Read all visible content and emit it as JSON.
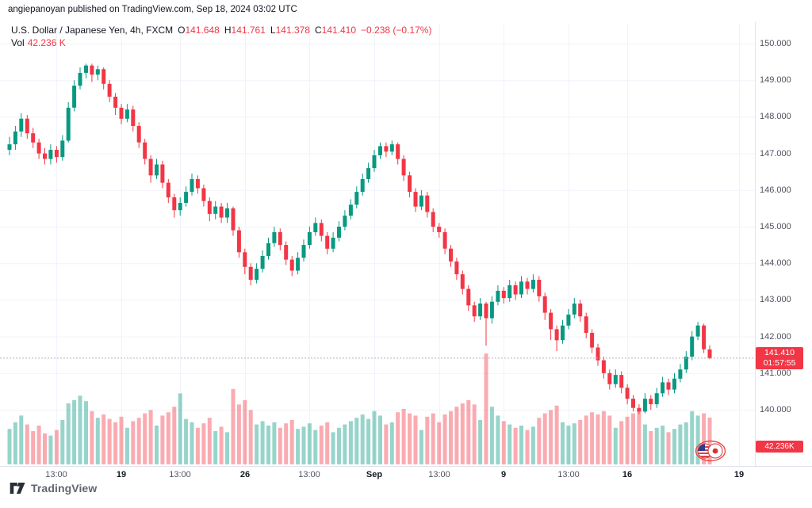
{
  "attribution": "angiepanoyan published on TradingView.com, Sep 18, 2024 03:02 UTC",
  "header": {
    "symbol": "U.S. Dollar / Japanese Yen, 4h, FXCM",
    "open": {
      "label": "O",
      "value": "141.648"
    },
    "high": {
      "label": "H",
      "value": "141.761"
    },
    "low": {
      "label": "L",
      "value": "141.378"
    },
    "close": {
      "label": "C",
      "value": "141.410"
    },
    "change": "−0.238 (−0.17%)",
    "vol_label": "Vol",
    "vol_value": "42.236 K"
  },
  "badges": {
    "price": "141.410",
    "countdown": "01:57:55",
    "volume": "42.236K"
  },
  "footer": {
    "logo_text": "TradingView"
  },
  "icons": {
    "flags_sticker": "us-japan-flags-icon",
    "logo": "tradingview-logo-icon"
  },
  "colors": {
    "up": "#089981",
    "down": "#f23645",
    "vol_up": "rgba(8,153,129,0.42)",
    "vol_down": "rgba(242,54,69,0.42)",
    "grid": "#f0f3fa",
    "axis_line": "#e0e3eb",
    "price_line": "#b2b5be",
    "badge": "#f23645",
    "tick_text": "#50535e"
  },
  "chart_data": {
    "type": "candlestick",
    "title": "U.S. Dollar / Japanese Yen, 4h, FXCM",
    "timeframe": "4h",
    "exchange": "FXCM",
    "last_price": 141.41,
    "last_volume_k": 42.236,
    "ylim": [
      139.5,
      150.3
    ],
    "grid": true,
    "y_ticks": [
      {
        "v": 150,
        "label": "150.000"
      },
      {
        "v": 149,
        "label": "149.000"
      },
      {
        "v": 148,
        "label": "148.000"
      },
      {
        "v": 147,
        "label": "147.000"
      },
      {
        "v": 146,
        "label": "146.000"
      },
      {
        "v": 145,
        "label": "145.000"
      },
      {
        "v": 144,
        "label": "144.000"
      },
      {
        "v": 143,
        "label": "143.000"
      },
      {
        "v": 142,
        "label": "142.000"
      },
      {
        "v": 141,
        "label": "141.000"
      },
      {
        "v": 140,
        "label": "140.000"
      }
    ],
    "x_ticks": [
      {
        "i": 8,
        "label": "13:00",
        "bold": false
      },
      {
        "i": 19,
        "label": "19",
        "bold": true
      },
      {
        "i": 29,
        "label": "13:00",
        "bold": false
      },
      {
        "i": 40,
        "label": "26",
        "bold": true
      },
      {
        "i": 51,
        "label": "13:00",
        "bold": false
      },
      {
        "i": 62,
        "label": "Sep",
        "bold": true
      },
      {
        "i": 73,
        "label": "13:00",
        "bold": false
      },
      {
        "i": 84,
        "label": "9",
        "bold": true
      },
      {
        "i": 95,
        "label": "13:00",
        "bold": false
      },
      {
        "i": 105,
        "label": "16",
        "bold": true
      },
      {
        "i": 124,
        "label": "19",
        "bold": true
      }
    ],
    "candles": [
      [
        147.1,
        147.45,
        146.95,
        147.25,
        32
      ],
      [
        147.25,
        147.75,
        147.1,
        147.6,
        38
      ],
      [
        147.6,
        148.1,
        147.45,
        147.95,
        44
      ],
      [
        147.95,
        148.05,
        147.4,
        147.55,
        36
      ],
      [
        147.55,
        147.7,
        147.15,
        147.3,
        30
      ],
      [
        147.3,
        147.4,
        146.85,
        147.0,
        35
      ],
      [
        147.0,
        147.15,
        146.7,
        146.85,
        28
      ],
      [
        146.85,
        147.25,
        146.7,
        147.1,
        26
      ],
      [
        147.1,
        147.2,
        146.75,
        146.9,
        31
      ],
      [
        146.9,
        147.5,
        146.8,
        147.35,
        40
      ],
      [
        147.35,
        148.4,
        147.3,
        148.25,
        55
      ],
      [
        148.25,
        149.0,
        148.15,
        148.85,
        58
      ],
      [
        148.85,
        149.35,
        148.75,
        149.2,
        62
      ],
      [
        149.2,
        149.45,
        149.05,
        149.4,
        57
      ],
      [
        149.4,
        149.45,
        148.95,
        149.15,
        48
      ],
      [
        149.15,
        149.4,
        149.0,
        149.3,
        42
      ],
      [
        149.3,
        149.35,
        148.75,
        148.9,
        45
      ],
      [
        148.9,
        149.0,
        148.4,
        148.55,
        41
      ],
      [
        148.55,
        148.65,
        148.05,
        148.25,
        38
      ],
      [
        148.25,
        148.35,
        147.8,
        147.95,
        43
      ],
      [
        147.95,
        148.35,
        147.85,
        148.2,
        33
      ],
      [
        148.2,
        148.3,
        147.6,
        147.75,
        39
      ],
      [
        147.75,
        147.85,
        147.15,
        147.3,
        42
      ],
      [
        147.3,
        147.4,
        146.7,
        146.85,
        46
      ],
      [
        146.85,
        146.95,
        146.2,
        146.4,
        49
      ],
      [
        146.4,
        146.85,
        146.3,
        146.7,
        35
      ],
      [
        146.7,
        146.8,
        146.05,
        146.2,
        44
      ],
      [
        146.2,
        146.3,
        145.65,
        145.8,
        47
      ],
      [
        145.8,
        145.9,
        145.25,
        145.45,
        52
      ],
      [
        145.45,
        145.8,
        145.3,
        145.65,
        64
      ],
      [
        145.65,
        146.1,
        145.55,
        145.95,
        41
      ],
      [
        145.95,
        146.45,
        145.85,
        146.3,
        38
      ],
      [
        146.3,
        146.4,
        145.9,
        146.05,
        33
      ],
      [
        146.05,
        146.15,
        145.55,
        145.7,
        37
      ],
      [
        145.7,
        145.8,
        145.15,
        145.35,
        42
      ],
      [
        145.35,
        145.7,
        145.2,
        145.55,
        30
      ],
      [
        145.55,
        145.65,
        145.1,
        145.25,
        34
      ],
      [
        145.25,
        145.65,
        145.1,
        145.5,
        29
      ],
      [
        145.5,
        145.55,
        144.75,
        144.9,
        68
      ],
      [
        144.9,
        145.0,
        144.15,
        144.3,
        54
      ],
      [
        144.3,
        144.4,
        143.7,
        143.9,
        58
      ],
      [
        143.9,
        144.0,
        143.4,
        143.55,
        49
      ],
      [
        143.55,
        144.0,
        143.45,
        143.85,
        36
      ],
      [
        143.85,
        144.35,
        143.75,
        144.2,
        39
      ],
      [
        144.2,
        144.7,
        144.1,
        144.55,
        35
      ],
      [
        144.55,
        145.0,
        144.45,
        144.85,
        38
      ],
      [
        144.85,
        144.95,
        144.35,
        144.5,
        33
      ],
      [
        144.5,
        144.6,
        143.95,
        144.1,
        37
      ],
      [
        144.1,
        144.2,
        143.65,
        143.8,
        40
      ],
      [
        143.8,
        144.3,
        143.7,
        144.15,
        32
      ],
      [
        144.15,
        144.65,
        144.05,
        144.5,
        34
      ],
      [
        144.5,
        145.0,
        144.4,
        144.85,
        37
      ],
      [
        144.85,
        145.25,
        144.75,
        145.1,
        31
      ],
      [
        145.1,
        145.2,
        144.6,
        144.75,
        35
      ],
      [
        144.75,
        144.85,
        144.25,
        144.4,
        38
      ],
      [
        144.4,
        144.85,
        144.3,
        144.7,
        29
      ],
      [
        144.7,
        145.15,
        144.6,
        145.0,
        33
      ],
      [
        145.0,
        145.45,
        144.9,
        145.3,
        36
      ],
      [
        145.3,
        145.75,
        145.2,
        145.6,
        39
      ],
      [
        145.6,
        146.1,
        145.5,
        145.95,
        42
      ],
      [
        145.95,
        146.45,
        145.85,
        146.3,
        45
      ],
      [
        146.3,
        146.75,
        146.2,
        146.6,
        41
      ],
      [
        146.6,
        147.1,
        146.5,
        146.95,
        48
      ],
      [
        146.95,
        147.3,
        146.85,
        147.2,
        44
      ],
      [
        147.2,
        147.3,
        146.9,
        147.05,
        36
      ],
      [
        147.05,
        147.35,
        146.95,
        147.25,
        38
      ],
      [
        147.25,
        147.3,
        146.7,
        146.85,
        47
      ],
      [
        146.85,
        146.95,
        146.25,
        146.4,
        50
      ],
      [
        146.4,
        146.5,
        145.8,
        145.95,
        46
      ],
      [
        145.95,
        146.05,
        145.4,
        145.55,
        44
      ],
      [
        145.55,
        146.0,
        145.45,
        145.85,
        31
      ],
      [
        145.85,
        145.95,
        145.25,
        145.4,
        43
      ],
      [
        145.4,
        145.5,
        144.85,
        145.0,
        46
      ],
      [
        145.0,
        145.1,
        144.7,
        144.85,
        38
      ],
      [
        144.85,
        144.95,
        144.25,
        144.4,
        45
      ],
      [
        144.4,
        144.5,
        143.9,
        144.05,
        48
      ],
      [
        144.05,
        144.15,
        143.55,
        143.7,
        52
      ],
      [
        143.7,
        143.8,
        143.15,
        143.3,
        55
      ],
      [
        143.3,
        143.4,
        142.7,
        142.85,
        58
      ],
      [
        142.85,
        142.95,
        142.4,
        142.55,
        54
      ],
      [
        142.55,
        143.05,
        142.45,
        142.9,
        40
      ],
      [
        142.9,
        142.95,
        141.75,
        142.5,
        100
      ],
      [
        142.5,
        143.1,
        142.35,
        142.95,
        52
      ],
      [
        142.95,
        143.4,
        142.85,
        143.25,
        44
      ],
      [
        143.25,
        143.35,
        142.9,
        143.05,
        39
      ],
      [
        143.05,
        143.55,
        142.95,
        143.4,
        36
      ],
      [
        143.4,
        143.5,
        143.0,
        143.15,
        33
      ],
      [
        143.15,
        143.65,
        143.05,
        143.5,
        35
      ],
      [
        143.5,
        143.6,
        143.15,
        143.3,
        31
      ],
      [
        143.3,
        143.7,
        143.2,
        143.55,
        34
      ],
      [
        143.55,
        143.65,
        142.95,
        143.1,
        42
      ],
      [
        143.1,
        143.2,
        142.45,
        142.65,
        46
      ],
      [
        142.65,
        142.75,
        141.9,
        142.2,
        49
      ],
      [
        142.2,
        142.3,
        141.6,
        141.9,
        53
      ],
      [
        141.9,
        142.45,
        141.8,
        142.3,
        38
      ],
      [
        142.3,
        142.75,
        142.2,
        142.6,
        35
      ],
      [
        142.6,
        143.05,
        142.5,
        142.9,
        37
      ],
      [
        142.9,
        143.0,
        142.4,
        142.55,
        40
      ],
      [
        142.55,
        142.65,
        141.95,
        142.1,
        44
      ],
      [
        142.1,
        142.2,
        141.55,
        141.7,
        47
      ],
      [
        141.7,
        141.8,
        141.2,
        141.35,
        45
      ],
      [
        141.35,
        141.45,
        140.85,
        141.0,
        48
      ],
      [
        141.0,
        141.1,
        140.55,
        140.7,
        44
      ],
      [
        140.7,
        141.1,
        140.6,
        140.95,
        33
      ],
      [
        140.95,
        141.05,
        140.45,
        140.6,
        39
      ],
      [
        140.6,
        140.7,
        140.15,
        140.3,
        43
      ],
      [
        140.3,
        140.4,
        139.95,
        140.05,
        46
      ],
      [
        140.05,
        140.15,
        139.88,
        139.95,
        50
      ],
      [
        139.95,
        140.45,
        139.9,
        140.3,
        36
      ],
      [
        140.3,
        140.4,
        140.0,
        140.15,
        30
      ],
      [
        140.15,
        140.6,
        140.05,
        140.45,
        33
      ],
      [
        140.45,
        140.9,
        140.35,
        140.75,
        35
      ],
      [
        140.75,
        140.85,
        140.4,
        140.55,
        29
      ],
      [
        140.55,
        141.0,
        140.45,
        140.85,
        32
      ],
      [
        140.85,
        141.25,
        140.75,
        141.1,
        36
      ],
      [
        141.1,
        141.6,
        141.0,
        141.45,
        38
      ],
      [
        141.45,
        142.15,
        141.35,
        142.0,
        48
      ],
      [
        142.0,
        142.4,
        141.9,
        142.3,
        44
      ],
      [
        142.3,
        142.35,
        141.55,
        141.65,
        46
      ],
      [
        141.648,
        141.761,
        141.378,
        141.41,
        42.236
      ]
    ]
  }
}
